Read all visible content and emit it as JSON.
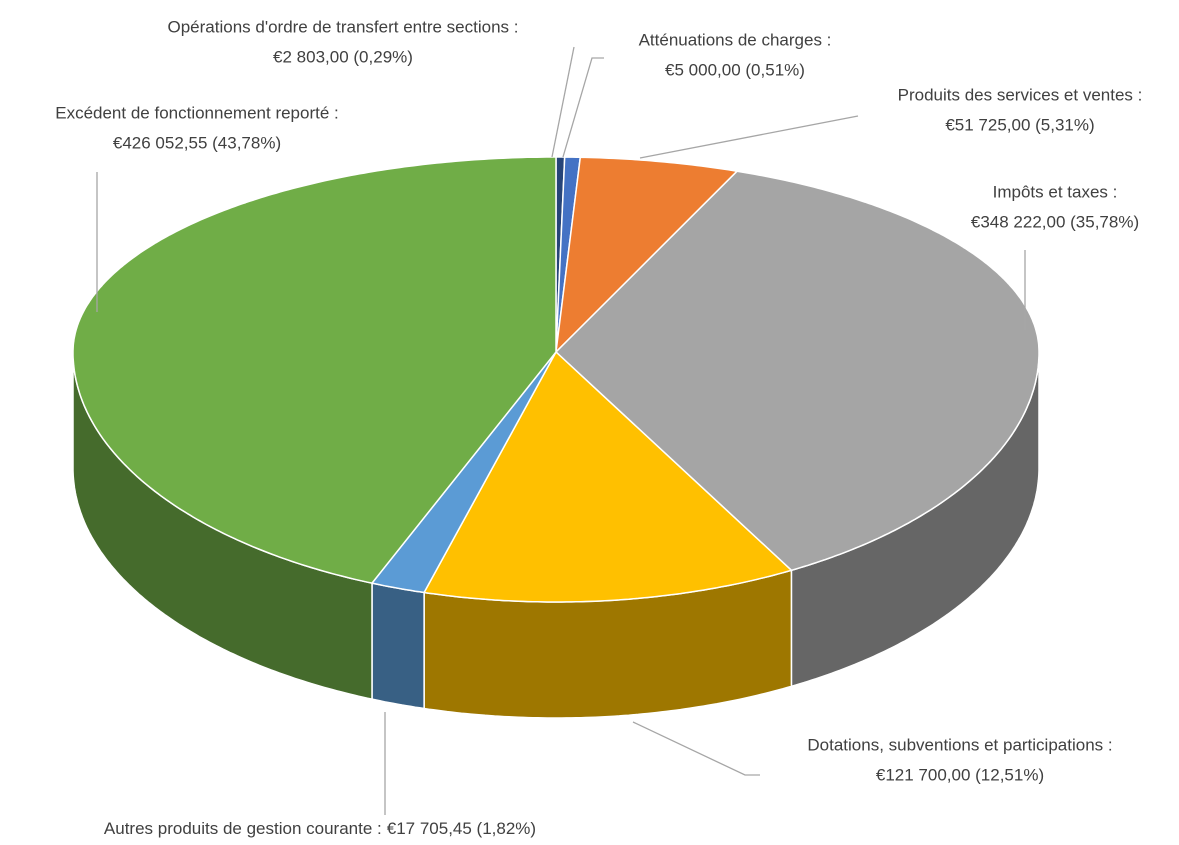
{
  "chart_data": {
    "type": "pie3d",
    "categories": [
      "Opérations d'ordre de transfert entre sections :",
      "Atténuations de charges :",
      "Produits des services et ventes :",
      "Impôts et taxes :",
      "Dotations, subventions et participations :",
      "Autres produits de gestion courante :",
      "Excédent de fonctionnement reporté :"
    ],
    "values": [
      2803,
      5000,
      51725,
      348222,
      121700,
      17705.45,
      426052.55
    ],
    "value_labels": [
      "€2 803,00 (0,29%)",
      "€5 000,00 (0,51%)",
      "€51 725,00 (5,31%)",
      "€348 222,00 (35,78%)",
      "€121 700,00 (12,51%)",
      "€17 705,45 (1,82%)",
      "€426 052,55 (43,78%)"
    ],
    "colors": [
      "#264478",
      "#4472c4",
      "#ed7d31",
      "#a5a5a5",
      "#ffc000",
      "#5b9bd5",
      "#70ad47"
    ]
  }
}
